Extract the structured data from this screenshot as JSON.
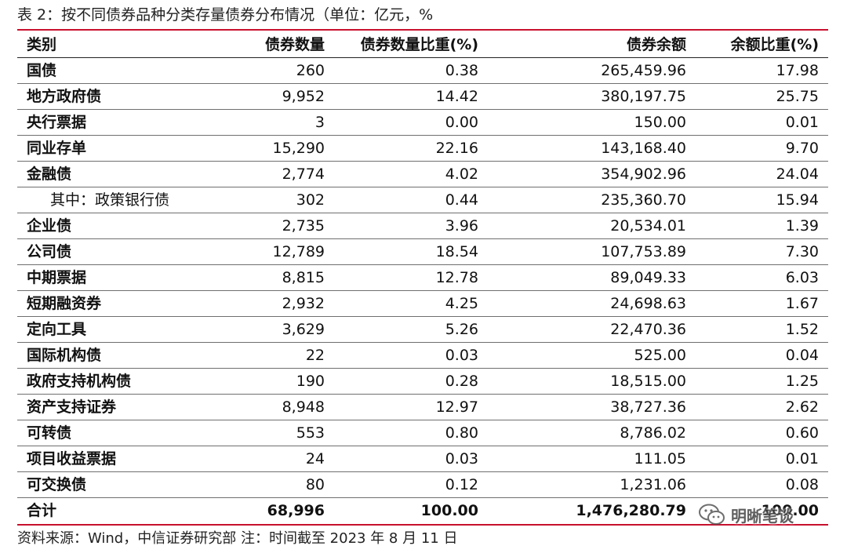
{
  "caption": "表 2：按不同债券品种分类存量债券分布情况（单位：亿元，%",
  "headers": [
    "类别",
    "债券数量",
    "债券数量比重(%)",
    "债券余额",
    "余额比重(%)"
  ],
  "rows": [
    {
      "name": "国债",
      "count": "260",
      "count_pct": "0.38",
      "balance": "265,459.96",
      "balance_pct": "17.98"
    },
    {
      "name": "地方政府债",
      "count": "9,952",
      "count_pct": "14.42",
      "balance": "380,197.75",
      "balance_pct": "25.75"
    },
    {
      "name": "央行票据",
      "count": "3",
      "count_pct": "0.00",
      "balance": "150.00",
      "balance_pct": "0.01"
    },
    {
      "name": "同业存单",
      "count": "15,290",
      "count_pct": "22.16",
      "balance": "143,168.40",
      "balance_pct": "9.70"
    },
    {
      "name": "金融债",
      "count": "2,774",
      "count_pct": "4.02",
      "balance": "354,902.96",
      "balance_pct": "24.04"
    },
    {
      "name": "其中：政策银行债",
      "count": "302",
      "count_pct": "0.44",
      "balance": "235,360.70",
      "balance_pct": "15.94"
    },
    {
      "name": "企业债",
      "count": "2,735",
      "count_pct": "3.96",
      "balance": "20,534.01",
      "balance_pct": "1.39"
    },
    {
      "name": "公司债",
      "count": "12,789",
      "count_pct": "18.54",
      "balance": "107,753.89",
      "balance_pct": "7.30"
    },
    {
      "name": "中期票据",
      "count": "8,815",
      "count_pct": "12.78",
      "balance": "89,049.33",
      "balance_pct": "6.03"
    },
    {
      "name": "短期融资券",
      "count": "2,932",
      "count_pct": "4.25",
      "balance": "24,698.63",
      "balance_pct": "1.67"
    },
    {
      "name": "定向工具",
      "count": "3,629",
      "count_pct": "5.26",
      "balance": "22,470.36",
      "balance_pct": "1.52"
    },
    {
      "name": "国际机构债",
      "count": "22",
      "count_pct": "0.03",
      "balance": "525.00",
      "balance_pct": "0.04"
    },
    {
      "name": "政府支持机构债",
      "count": "190",
      "count_pct": "0.28",
      "balance": "18,515.00",
      "balance_pct": "1.25"
    },
    {
      "name": "资产支持证券",
      "count": "8,948",
      "count_pct": "12.97",
      "balance": "38,727.36",
      "balance_pct": "2.62"
    },
    {
      "name": "可转债",
      "count": "553",
      "count_pct": "0.80",
      "balance": "8,786.02",
      "balance_pct": "0.60"
    },
    {
      "name": "项目收益票据",
      "count": "24",
      "count_pct": "0.03",
      "balance": "111.05",
      "balance_pct": "0.01"
    },
    {
      "name": "可交换债",
      "count": "80",
      "count_pct": "0.12",
      "balance": "1,231.06",
      "balance_pct": "0.08"
    }
  ],
  "total": {
    "name": "合计",
    "count": "68,996",
    "count_pct": "100.00",
    "balance": "1,476,280.79",
    "balance_pct": "100.00"
  },
  "source": "资料来源：Wind，中信证券研究部 注：时间截至 2023 年 8 月 11 日",
  "watermark": {
    "text": "明晰笔谈",
    "icon": "wechat-icon"
  },
  "colors": {
    "accent_rule": "#c8102e"
  }
}
